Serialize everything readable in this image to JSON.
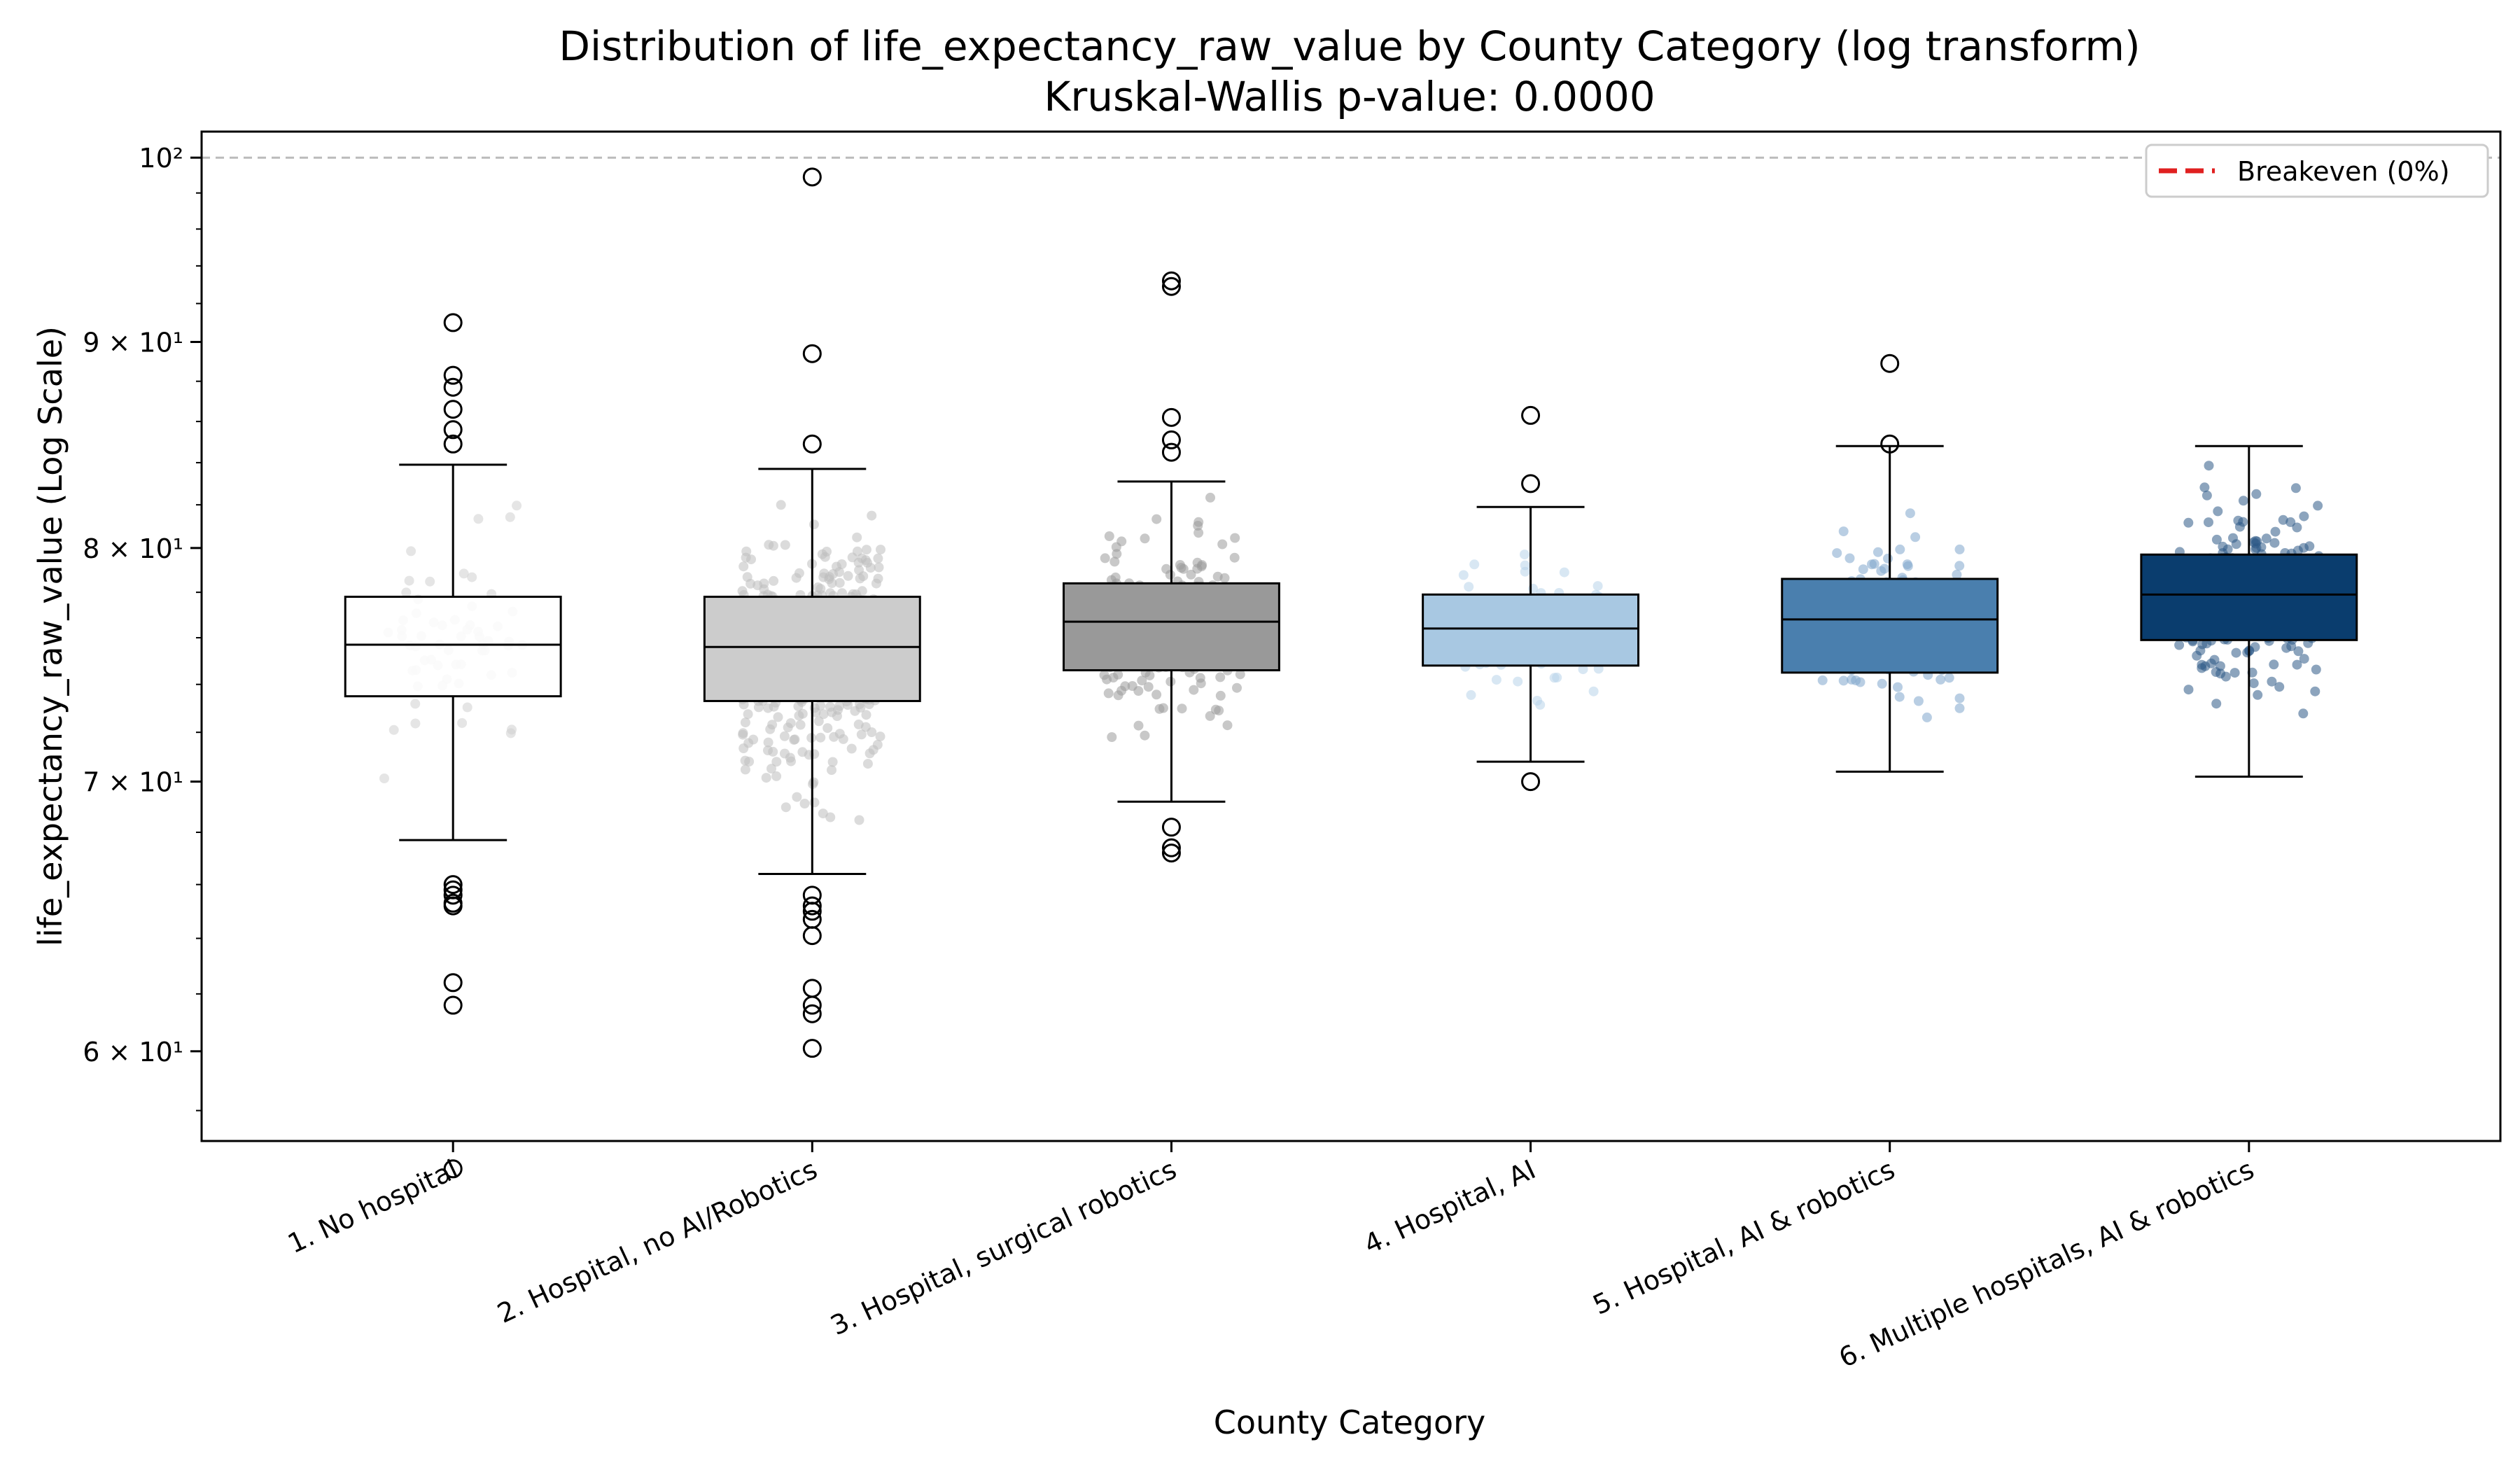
{
  "chart_data": {
    "type": "box",
    "title": "Distribution of life_expectancy_raw_value by County Category (log transform)",
    "subtitle": "Kruskal-Wallis p-value: 0.0000",
    "xlabel": "County Category",
    "ylabel": "life_expectancy_raw_value (Log Scale)",
    "y_scale": "log",
    "ylim": [
      57,
      101.5
    ],
    "y_ticks": [
      {
        "value": 60,
        "label": "6 × 10¹"
      },
      {
        "value": 70,
        "label": "7 × 10¹"
      },
      {
        "value": 80,
        "label": "8 × 10¹"
      },
      {
        "value": 90,
        "label": "9 × 10¹"
      },
      {
        "value": 100,
        "label": "10²"
      }
    ],
    "reference_line": {
      "value": 100,
      "style": "dashed",
      "color": "#bbbbbb"
    },
    "legend": {
      "placement": "top-right",
      "entries": [
        {
          "label": "Breakeven (0%)",
          "color": "#e02020",
          "style": "dashed"
        }
      ]
    },
    "categories": [
      {
        "label": "1. No hospital",
        "color": "#ffffff",
        "point_color": "#d0d0d0",
        "whisker_low": 67.7,
        "q1": 73.5,
        "median": 75.7,
        "q3": 77.8,
        "whisker_high": 83.9,
        "outliers": [
          91.0,
          88.3,
          87.7,
          86.6,
          85.6,
          84.9,
          66.0,
          65.8,
          65.6,
          65.3,
          65.2,
          62.4,
          61.6,
          56.1
        ]
      },
      {
        "label": "2. Hospital, no AI/Robotics",
        "color": "#cccccc",
        "point_color": "#bdbdbd",
        "whisker_low": 66.4,
        "q1": 73.3,
        "median": 75.6,
        "q3": 77.8,
        "whisker_high": 83.7,
        "outliers": [
          98.9,
          89.4,
          84.9,
          65.6,
          65.2,
          65.0,
          64.7,
          64.1,
          62.2,
          61.6,
          61.3,
          60.1
        ]
      },
      {
        "label": "3. Hospital, surgical robotics",
        "color": "#999999",
        "point_color": "#9a9a9a",
        "whisker_low": 69.2,
        "q1": 74.6,
        "median": 76.7,
        "q3": 78.4,
        "whisker_high": 83.1,
        "outliers": [
          93.2,
          92.9,
          86.2,
          85.1,
          84.5,
          68.2,
          67.4,
          67.2
        ]
      },
      {
        "label": "4. Hospital, AI",
        "color": "#a8c8e2",
        "point_color": "#b8d3ea",
        "whisker_low": 70.8,
        "q1": 74.8,
        "median": 76.4,
        "q3": 77.9,
        "whisker_high": 81.9,
        "outliers": [
          86.3,
          83.0,
          70.0
        ]
      },
      {
        "label": "5. Hospital, AI & robotics",
        "color": "#4a7fae",
        "point_color": "#7fa6cc",
        "whisker_low": 70.4,
        "q1": 74.5,
        "median": 76.8,
        "q3": 78.6,
        "whisker_high": 84.8,
        "outliers": [
          88.9,
          84.9
        ]
      },
      {
        "label": "6. Multiple hospitals, AI & robotics",
        "color": "#0a3d6e",
        "point_color": "#2d5a87",
        "whisker_low": 70.2,
        "q1": 75.9,
        "median": 77.9,
        "q3": 79.7,
        "whisker_high": 84.8,
        "outliers": []
      }
    ]
  }
}
